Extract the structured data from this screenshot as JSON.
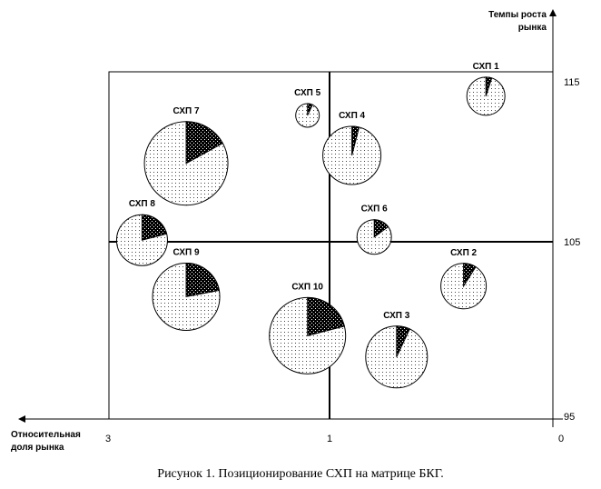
{
  "caption": "Рисунок 1. Позиционирование СХП на матрице БКГ.",
  "chart_data": {
    "type": "bubble-pie",
    "title": "",
    "xlabel_lines": [
      "Относительная",
      "доля рынка"
    ],
    "ylabel_lines": [
      "Темпы роста",
      "рынка"
    ],
    "x_reversed": true,
    "x_ticks": [
      {
        "label": "3",
        "value": 3
      },
      {
        "label": "1",
        "value": 1
      },
      {
        "label": "0",
        "value": 0
      }
    ],
    "y_ticks": [
      {
        "label": "115",
        "value": 115
      },
      {
        "label": "105",
        "value": 105
      },
      {
        "label": "95",
        "value": 95
      }
    ],
    "y_range": [
      95,
      115
    ],
    "divider": {
      "x": 1,
      "y": 105
    },
    "units": [
      {
        "name": "СХП 1",
        "share": 0.3,
        "growth": 114.1,
        "size": 21,
        "slice": 0.05
      },
      {
        "name": "СХП 2",
        "share": 0.4,
        "growth": 102.5,
        "size": 25,
        "slice": 0.09
      },
      {
        "name": "СХП 3",
        "share": 0.7,
        "growth": 98.5,
        "size": 34,
        "slice": 0.07
      },
      {
        "name": "СХП 4",
        "share": 0.9,
        "growth": 110.4,
        "size": 32,
        "slice": 0.04
      },
      {
        "name": "СХП 5",
        "share": 1.2,
        "growth": 112.9,
        "size": 13,
        "slice": 0.07
      },
      {
        "name": "СХП 6",
        "share": 0.8,
        "growth": 105.3,
        "size": 19,
        "slice": 0.15
      },
      {
        "name": "СХП 7",
        "share": 2.3,
        "growth": 109.9,
        "size": 46,
        "slice": 0.17
      },
      {
        "name": "СХП 8",
        "share": 2.7,
        "growth": 105.1,
        "size": 28,
        "slice": 0.21
      },
      {
        "name": "СХП 9",
        "share": 2.3,
        "growth": 101.9,
        "size": 37,
        "slice": 0.22
      },
      {
        "name": "СХП 10",
        "share": 1.2,
        "growth": 99.7,
        "size": 42,
        "slice": 0.21
      }
    ]
  }
}
